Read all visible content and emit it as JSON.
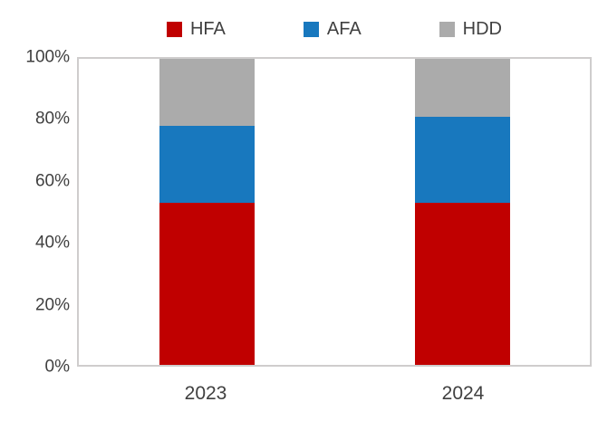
{
  "chart_data": {
    "type": "bar",
    "variant": "stacked-100-percent",
    "title": "",
    "xlabel": "",
    "ylabel": "",
    "categories": [
      "2023",
      "2024"
    ],
    "series": [
      {
        "name": "HFA",
        "color": "#c00000",
        "values": [
          53,
          53
        ]
      },
      {
        "name": "AFA",
        "color": "#1878be",
        "values": [
          25,
          28
        ]
      },
      {
        "name": "HDD",
        "color": "#ababab",
        "values": [
          22,
          19
        ]
      }
    ],
    "stack_order": "bottom-to-top",
    "ylim": [
      0,
      100
    ],
    "y_ticks": [
      "0%",
      "20%",
      "40%",
      "60%",
      "80%",
      "100%"
    ],
    "grid": false,
    "legend_position": "top"
  },
  "colors": {
    "text": "#404040",
    "plot_border": "#cfcdcd",
    "background": "#ffffff"
  }
}
